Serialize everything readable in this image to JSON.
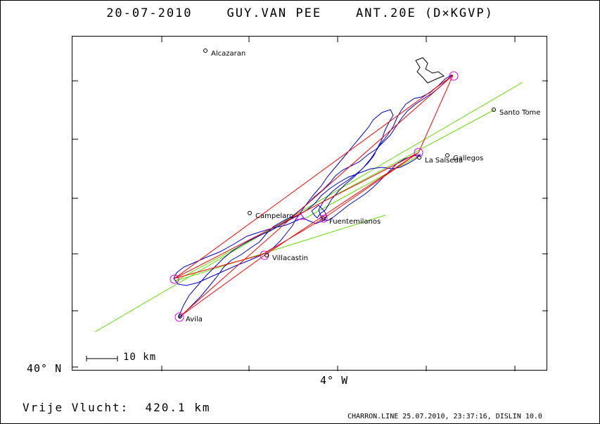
{
  "header": {
    "date": "20-07-2010",
    "pilot": "GUY.VAN PEE",
    "glider": "ANT.20E (D×KGVP)"
  },
  "axes": {
    "lat_label": "40° N",
    "lon_label": "4° W"
  },
  "scale_bar": {
    "label": "10 km"
  },
  "places": [
    {
      "name": "Alcazaran"
    },
    {
      "name": "Santo Tome"
    },
    {
      "name": "Gallegos"
    },
    {
      "name": "La Salseda"
    },
    {
      "name": "Campelaro"
    },
    {
      "name": "Fuentemilanos"
    },
    {
      "name": "Villacastin"
    },
    {
      "name": "Avila"
    }
  ],
  "summary": {
    "label": "Vrije Vlucht:",
    "distance": "420.1 km"
  },
  "footer": "CHARRON.LINE 25.07.2010, 23:37:16, DISLIN 10.0",
  "colors": {
    "track": "#0000cc",
    "route": "#ff0000",
    "sector": "#66dd00",
    "turnpoint": "#dd00dd",
    "frame": "#000000"
  }
}
